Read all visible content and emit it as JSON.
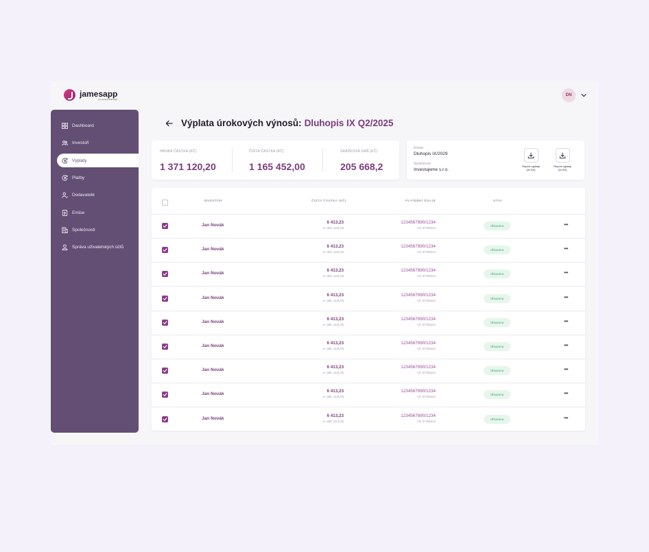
{
  "header": {
    "logo_name": "jamesapp",
    "logo_tagline": "pro správu dluhopisů",
    "avatar_initials": "DN"
  },
  "sidebar": {
    "items": [
      {
        "label": "Dashboard",
        "icon": "dashboard-icon",
        "active": false
      },
      {
        "label": "Investoři",
        "icon": "users-icon",
        "active": false
      },
      {
        "label": "Výplaty",
        "icon": "payout-icon",
        "active": true
      },
      {
        "label": "Platby",
        "icon": "payment-icon",
        "active": false
      },
      {
        "label": "Dodavatelé",
        "icon": "supplier-icon",
        "active": false
      },
      {
        "label": "Emise",
        "icon": "document-icon",
        "active": false
      },
      {
        "label": "Společnosti",
        "icon": "building-icon",
        "active": false
      },
      {
        "label": "Správa uživatelských účtů",
        "icon": "user-admin-icon",
        "active": false
      }
    ]
  },
  "page": {
    "title_prefix": "Výplata úrokových výnosů:",
    "title_accent": "Dluhopis IX Q2/2025"
  },
  "summary": {
    "gross_label": "HRUBÁ ČÁSTKA (KČ)",
    "gross_value": "1 371 120,20",
    "net_label": "ČISTÁ ČÁSTKA (KČ)",
    "net_value": "1 165 452,00",
    "tax_label": "SRÁŽKOVÁ DAŇ (KČ)",
    "tax_value": "205 668,2"
  },
  "info": {
    "emission_label": "Emise",
    "emission_value": "Dluhopis IX/2029",
    "company_label": "Společnost",
    "company_value": "Investujeme s.r.o.",
    "report1_line1": "Report výplaty",
    "report1_line2": "(XLSX)",
    "report2_line1": "Report výplaty",
    "report2_line2": "(XLSX)"
  },
  "table": {
    "columns": {
      "investor": "INVESTOR",
      "net_amount": "ČISTÁ ČÁSTKA (KČ)",
      "payment": "PLATEBNÍ ÚDAJE",
      "status": "STAV"
    },
    "rows": [
      {
        "investor": "Jan Novák",
        "amount": "6 413,23",
        "tax": "sr. daň: 1131,00",
        "account": "1234567890/1234",
        "vs": "VS: 67786312",
        "status": "Uhrazeno"
      },
      {
        "investor": "Jan Novák",
        "amount": "6 413,23",
        "tax": "sr. daň: 1131,00",
        "account": "1234567890/1234",
        "vs": "VS: 67786312",
        "status": "Uhrazeno"
      },
      {
        "investor": "Jan Novák",
        "amount": "6 413,23",
        "tax": "sr. daň: 1131,00",
        "account": "1234567890/1234",
        "vs": "VS: 67786312",
        "status": "Uhrazeno"
      },
      {
        "investor": "Jan Novák",
        "amount": "6 413,23",
        "tax": "sr. daň: 1131,00",
        "account": "1234567890/1234",
        "vs": "VS: 67786312",
        "status": "Uhrazeno"
      },
      {
        "investor": "Jan Novák",
        "amount": "6 413,23",
        "tax": "sr. daň: 1131,00",
        "account": "1234567890/1234",
        "vs": "VS: 67786312",
        "status": "Uhrazeno"
      },
      {
        "investor": "Jan Novák",
        "amount": "6 413,23",
        "tax": "sr. daň: 1131,00",
        "account": "1234567890/1234",
        "vs": "VS: 67786312",
        "status": "Uhrazeno"
      },
      {
        "investor": "Jan Novák",
        "amount": "6 413,23",
        "tax": "sr. daň: 1131,00",
        "account": "1234567890/1234",
        "vs": "VS: 67786312",
        "status": "Uhrazeno"
      },
      {
        "investor": "Jan Novák",
        "amount": "6 413,23",
        "tax": "sr. daň: 1131,00",
        "account": "1234567890/1234",
        "vs": "VS: 67786312",
        "status": "Uhrazeno"
      },
      {
        "investor": "Jan Novák",
        "amount": "6 413,23",
        "tax": "sr. daň: 1131,00",
        "account": "1234567890/1234",
        "vs": "VS: 67786312",
        "status": "Uhrazeno"
      }
    ]
  },
  "colors": {
    "sidebar": "#634f73",
    "accent": "#7a3c7d",
    "status_green": "#3aa76a"
  }
}
